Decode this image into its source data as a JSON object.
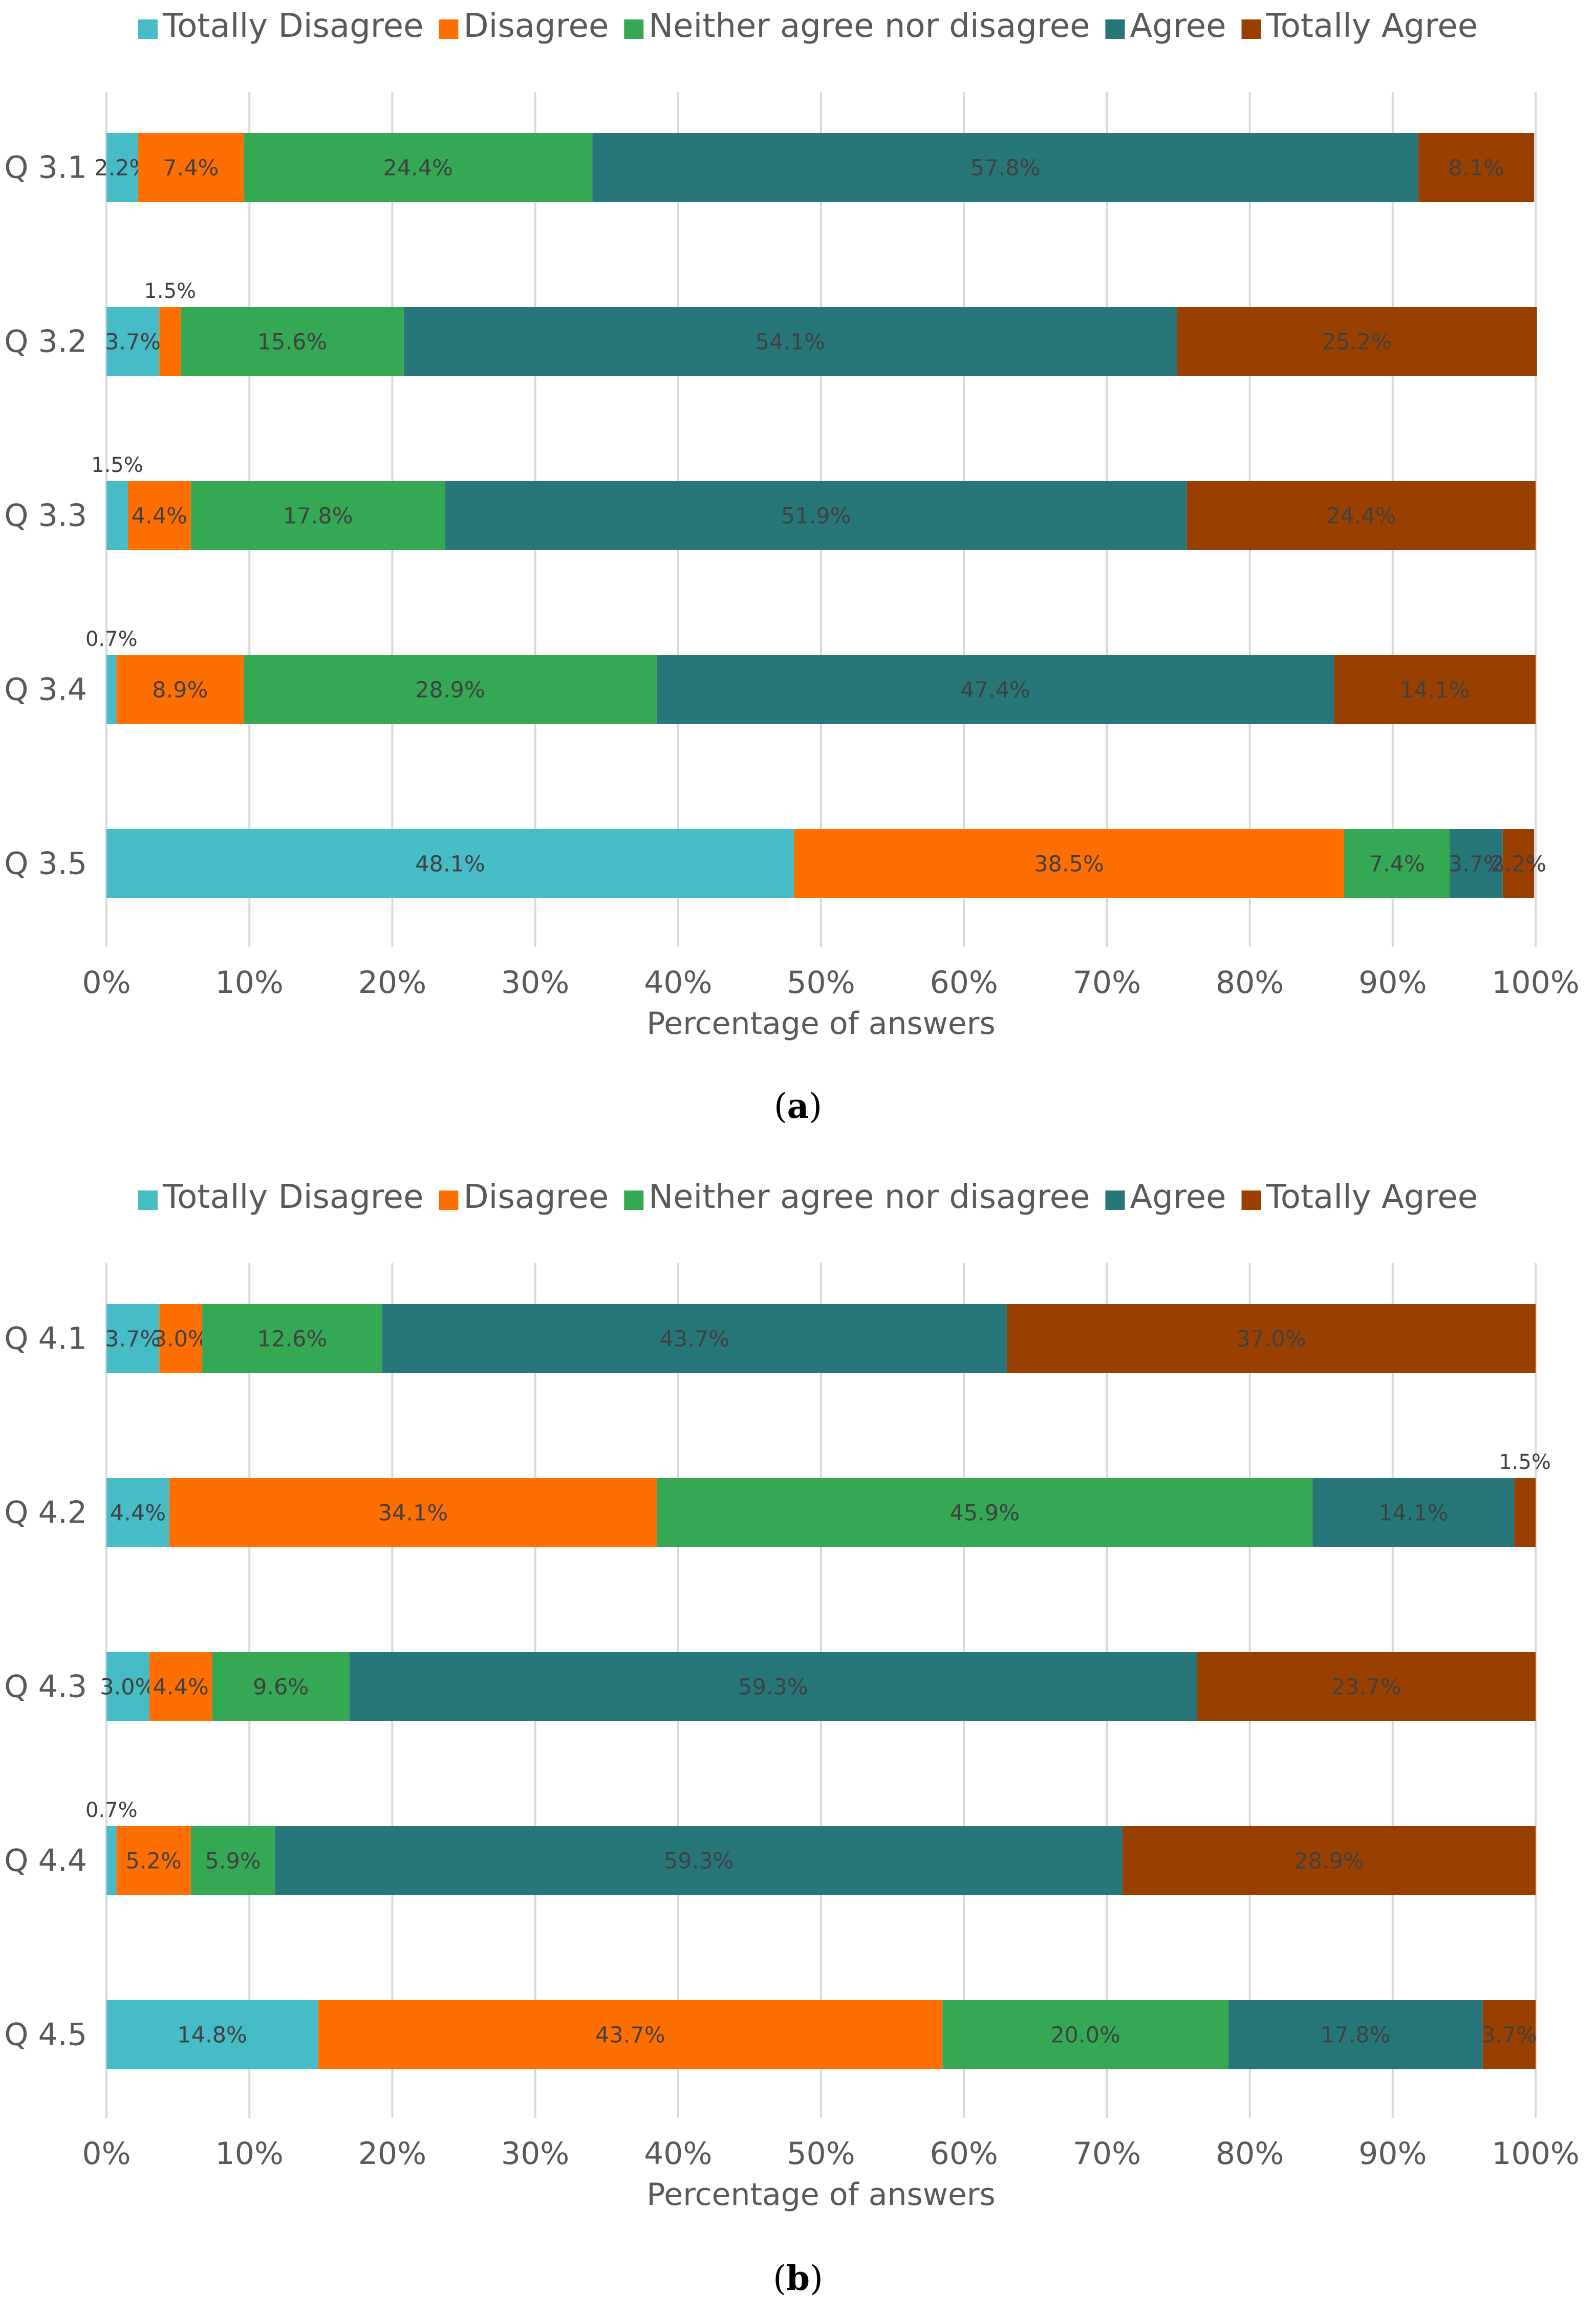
{
  "legend": [
    {
      "label": "Totally Disagree",
      "color": "#45BCC6"
    },
    {
      "label": "Disagree",
      "color": "#FF6E00"
    },
    {
      "label": "Neither agree nor disagree",
      "color": "#35A853"
    },
    {
      "label": "Agree",
      "color": "#26767A"
    },
    {
      "label": "Totally Agree",
      "color": "#993F00"
    }
  ],
  "chart_data": [
    {
      "type": "bar",
      "orientation": "horizontal",
      "stacked": true,
      "xlabel": "Percentage of answers",
      "xlim": [
        0,
        100
      ],
      "ticks": [
        "0%",
        "10%",
        "20%",
        "30%",
        "40%",
        "50%",
        "60%",
        "70%",
        "80%",
        "90%",
        "100%"
      ],
      "categories": [
        "Q 3.1",
        "Q 3.2",
        "Q 3.3",
        "Q 3.4",
        "Q 3.5"
      ],
      "series": [
        {
          "name": "Totally Disagree",
          "values": [
            2.2,
            3.7,
            1.5,
            0.7,
            48.1
          ]
        },
        {
          "name": "Disagree",
          "values": [
            7.4,
            1.5,
            4.4,
            8.9,
            38.5
          ]
        },
        {
          "name": "Neither agree nor disagree",
          "values": [
            24.4,
            15.6,
            17.8,
            28.9,
            7.4
          ]
        },
        {
          "name": "Agree",
          "values": [
            57.8,
            54.1,
            51.9,
            47.4,
            3.7
          ]
        },
        {
          "name": "Totally Agree",
          "values": [
            8.1,
            25.2,
            24.4,
            14.1,
            2.2
          ]
        }
      ],
      "labels": [
        [
          "2.2%",
          "7.4%",
          "24.4%",
          "57.8%",
          "8.1%"
        ],
        [
          "3.7%",
          "1.5%",
          "15.6%",
          "54.1%",
          "25.2%"
        ],
        [
          "1.5%",
          "4.4%",
          "17.8%",
          "51.9%",
          "24.4%"
        ],
        [
          "0.7%",
          "8.9%",
          "28.9%",
          "47.4%",
          "14.1%"
        ],
        [
          "48.1%",
          "38.5%",
          "7.4%",
          "3.7%",
          "2.2%"
        ]
      ],
      "caption": "a"
    },
    {
      "type": "bar",
      "orientation": "horizontal",
      "stacked": true,
      "xlabel": "Percentage of answers",
      "xlim": [
        0,
        100
      ],
      "ticks": [
        "0%",
        "10%",
        "20%",
        "30%",
        "40%",
        "50%",
        "60%",
        "70%",
        "80%",
        "90%",
        "100%"
      ],
      "categories": [
        "Q 4.1",
        "Q 4.2",
        "Q 4.3",
        "Q 4.4",
        "Q 4.5"
      ],
      "series": [
        {
          "name": "Totally Disagree",
          "values": [
            3.7,
            4.4,
            3.0,
            0.7,
            14.8
          ]
        },
        {
          "name": "Disagree",
          "values": [
            3.0,
            34.1,
            4.4,
            5.2,
            43.7
          ]
        },
        {
          "name": "Neither agree nor disagree",
          "values": [
            12.6,
            45.9,
            9.6,
            5.9,
            20.0
          ]
        },
        {
          "name": "Agree",
          "values": [
            43.7,
            14.1,
            59.3,
            59.3,
            17.8
          ]
        },
        {
          "name": "Totally Agree",
          "values": [
            37.0,
            1.5,
            23.7,
            28.9,
            3.7
          ]
        }
      ],
      "labels": [
        [
          "3.7%",
          "3.0%",
          "12.6%",
          "43.7%",
          "37.0%"
        ],
        [
          "4.4%",
          "34.1%",
          "45.9%",
          "14.1%",
          "1.5%"
        ],
        [
          "3.0%",
          "4.4%",
          "9.6%",
          "59.3%",
          "23.7%"
        ],
        [
          "0.7%",
          "5.2%",
          "5.9%",
          "59.3%",
          "28.9%"
        ],
        [
          "14.8%",
          "43.7%",
          "20.0%",
          "17.8%",
          "3.7%"
        ]
      ],
      "caption": "b"
    }
  ]
}
